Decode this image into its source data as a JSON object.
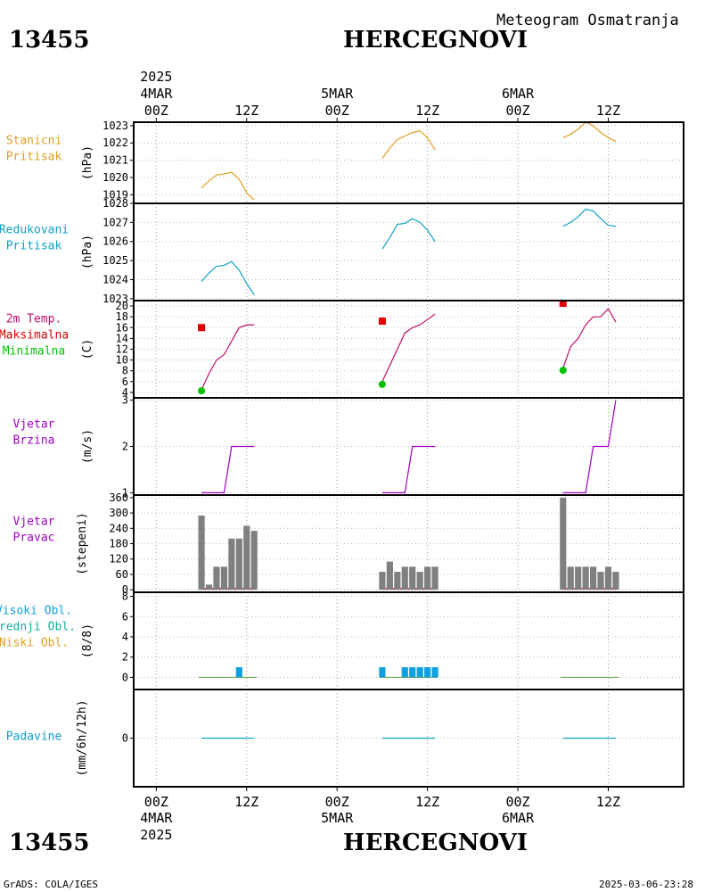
{
  "header": {
    "station_id": "13455",
    "station_name": "HERCEGNOVI",
    "subtitle": "Meteogram Osmatranja"
  },
  "footer": {
    "credit": "GrADS: COLA/IGES",
    "timestamp": "2025-03-06-23:28"
  },
  "colors": {
    "station_pressure": "#e0a020",
    "reduced_pressure": "#10a0c8",
    "temperature": "#c0106c",
    "tmax": "#e00000",
    "tmin": "#00c000",
    "wind": "#a000c0",
    "wind_dir_bar": "#808080",
    "cloud": "#10a0e0",
    "precip": "#10a0c8"
  },
  "time_axis": {
    "top_year": "2025",
    "bottom_year": "2025",
    "ticks": [
      {
        "h": 0,
        "label": "00Z",
        "date": "4MAR"
      },
      {
        "h": 12,
        "label": "12Z",
        "date": ""
      },
      {
        "h": 24,
        "label": "00Z",
        "date": "5MAR"
      },
      {
        "h": 36,
        "label": "12Z",
        "date": ""
      },
      {
        "h": 48,
        "label": "00Z",
        "date": "6MAR"
      },
      {
        "h": 60,
        "label": "12Z",
        "date": ""
      }
    ],
    "range_hours": [
      -3,
      70
    ]
  },
  "chart_data": [
    {
      "type": "line",
      "title_lines": [
        "Stanicni",
        "Pritisak"
      ],
      "ylabel": "(hPa)",
      "ylim": [
        1018.5,
        1023.2
      ],
      "yticks": [
        1019,
        1020,
        1021,
        1022,
        1023
      ],
      "series": [
        {
          "points": [
            [
              6,
              1019.4
            ],
            [
              7,
              1019.8
            ],
            [
              8,
              1020.15
            ],
            [
              9,
              1020.2
            ],
            [
              10,
              1020.3
            ],
            [
              11,
              1019.9
            ],
            [
              12,
              1019.1
            ],
            [
              13,
              1018.7
            ]
          ]
        },
        {
          "points": [
            [
              30,
              1021.1
            ],
            [
              31,
              1021.7
            ],
            [
              32,
              1022.2
            ],
            [
              33,
              1022.4
            ],
            [
              34,
              1022.6
            ],
            [
              35,
              1022.7
            ],
            [
              36,
              1022.3
            ],
            [
              37,
              1021.6
            ]
          ]
        },
        {
          "points": [
            [
              54,
              1022.3
            ],
            [
              55,
              1022.5
            ],
            [
              56,
              1022.8
            ],
            [
              57,
              1023.2
            ],
            [
              58,
              1023.0
            ],
            [
              59,
              1022.6
            ],
            [
              60,
              1022.3
            ],
            [
              61,
              1022.1
            ]
          ]
        }
      ]
    },
    {
      "type": "line",
      "title_lines": [
        "Redukovani",
        "Pritisak"
      ],
      "ylabel": "(hPa)",
      "ylim": [
        1022.9,
        1028
      ],
      "yticks": [
        1023,
        1024,
        1025,
        1026,
        1027,
        1028
      ],
      "series": [
        {
          "points": [
            [
              6,
              1023.9
            ],
            [
              7,
              1024.35
            ],
            [
              8,
              1024.7
            ],
            [
              9,
              1024.75
            ],
            [
              10,
              1024.95
            ],
            [
              11,
              1024.5
            ],
            [
              12,
              1023.8
            ],
            [
              13,
              1023.2
            ]
          ]
        },
        {
          "points": [
            [
              30,
              1025.6
            ],
            [
              31,
              1026.2
            ],
            [
              32,
              1026.9
            ],
            [
              33,
              1026.95
            ],
            [
              34,
              1027.2
            ],
            [
              35,
              1027.0
            ],
            [
              36,
              1026.6
            ],
            [
              37,
              1026.0
            ]
          ]
        },
        {
          "points": [
            [
              54,
              1026.8
            ],
            [
              55,
              1027.0
            ],
            [
              56,
              1027.3
            ],
            [
              57,
              1027.7
            ],
            [
              58,
              1027.6
            ],
            [
              59,
              1027.2
            ],
            [
              60,
              1026.85
            ],
            [
              61,
              1026.8
            ]
          ]
        }
      ]
    },
    {
      "type": "line",
      "title_lines": [
        "2m Temp.",
        "Maksimalna",
        "Minimalna"
      ],
      "ylabel": "(C)",
      "ylim": [
        3,
        21
      ],
      "yticks": [
        4,
        6,
        8,
        10,
        12,
        14,
        16,
        18,
        20
      ],
      "series": [
        {
          "points": [
            [
              6,
              4.5
            ],
            [
              7,
              7.5
            ],
            [
              8,
              10.0
            ],
            [
              9,
              11.0
            ],
            [
              10,
              13.5
            ],
            [
              11,
              16.0
            ],
            [
              12,
              16.5
            ],
            [
              13,
              16.5
            ]
          ]
        },
        {
          "points": [
            [
              30,
              6.0
            ],
            [
              31,
              9.0
            ],
            [
              32,
              12.0
            ],
            [
              33,
              15.0
            ],
            [
              34,
              16.0
            ],
            [
              35,
              16.5
            ],
            [
              36,
              17.5
            ],
            [
              37,
              18.5
            ]
          ]
        },
        {
          "points": [
            [
              54,
              8.5
            ],
            [
              55,
              12.5
            ],
            [
              56,
              14.0
            ],
            [
              57,
              16.5
            ],
            [
              58,
              18.0
            ],
            [
              59,
              18.0
            ],
            [
              60,
              19.5
            ],
            [
              61,
              17.0
            ]
          ]
        }
      ],
      "tmax": [
        [
          6,
          16.0
        ],
        [
          30,
          17.2
        ],
        [
          54,
          20.5
        ]
      ],
      "tmin": [
        [
          6,
          4.3
        ],
        [
          30,
          5.5
        ],
        [
          54,
          8.1
        ]
      ]
    },
    {
      "type": "line",
      "title_lines": [
        "Vjetar",
        "Brzina"
      ],
      "ylabel": "(m/s)",
      "ylim": [
        0.95,
        3.05
      ],
      "yticks": [
        1,
        2,
        3
      ],
      "series": [
        {
          "points": [
            [
              6,
              1
            ],
            [
              7,
              1
            ],
            [
              8,
              1
            ],
            [
              9,
              1
            ],
            [
              10,
              2
            ],
            [
              11,
              2
            ],
            [
              12,
              2
            ],
            [
              13,
              2
            ]
          ]
        },
        {
          "points": [
            [
              30,
              1
            ],
            [
              31,
              1
            ],
            [
              32,
              1
            ],
            [
              33,
              1
            ],
            [
              34,
              2
            ],
            [
              35,
              2
            ],
            [
              36,
              2
            ],
            [
              37,
              2
            ]
          ]
        },
        {
          "points": [
            [
              54,
              1
            ],
            [
              55,
              1
            ],
            [
              56,
              1
            ],
            [
              57,
              1
            ],
            [
              58,
              2
            ],
            [
              59,
              2
            ],
            [
              60,
              2
            ],
            [
              61,
              3
            ]
          ]
        }
      ]
    },
    {
      "type": "bar",
      "title_lines": [
        "Vjetar",
        "Pravac"
      ],
      "ylabel": "(stepeni)",
      "ylim": [
        -10,
        370
      ],
      "yticks": [
        0,
        60,
        120,
        180,
        240,
        300,
        360
      ],
      "bars": [
        [
          6,
          290
        ],
        [
          7,
          20
        ],
        [
          8,
          90
        ],
        [
          9,
          90
        ],
        [
          10,
          200
        ],
        [
          11,
          200
        ],
        [
          12,
          250
        ],
        [
          13,
          230
        ],
        [
          30,
          70
        ],
        [
          31,
          110
        ],
        [
          32,
          70
        ],
        [
          33,
          90
        ],
        [
          34,
          90
        ],
        [
          35,
          70
        ],
        [
          36,
          90
        ],
        [
          37,
          90
        ],
        [
          54,
          360
        ],
        [
          55,
          90
        ],
        [
          56,
          90
        ],
        [
          57,
          90
        ],
        [
          58,
          90
        ],
        [
          59,
          70
        ],
        [
          60,
          90
        ],
        [
          61,
          70
        ]
      ]
    },
    {
      "type": "bar",
      "title_lines": [
        "Visoki Obl.",
        "Srednji Obl.",
        "Niski Obl."
      ],
      "ylabel": "(8/8)",
      "ylim": [
        -1.2,
        8.4
      ],
      "yticks": [
        0,
        2,
        4,
        6,
        8
      ],
      "bars": [
        [
          11,
          1
        ],
        [
          30,
          1
        ],
        [
          33,
          1
        ],
        [
          34,
          1
        ],
        [
          35,
          1
        ],
        [
          36,
          1
        ],
        [
          37,
          1
        ]
      ]
    },
    {
      "type": "line",
      "title_lines": [
        "Padavine"
      ],
      "ylabel": "(mm/6h/12h)",
      "ylim": [
        -5,
        5
      ],
      "yticks": [
        0
      ],
      "series": [
        {
          "points": [
            [
              6,
              0
            ],
            [
              13,
              0
            ]
          ]
        },
        {
          "points": [
            [
              30,
              0
            ],
            [
              37,
              0
            ]
          ]
        },
        {
          "points": [
            [
              54,
              0
            ],
            [
              61,
              0
            ]
          ]
        }
      ]
    }
  ]
}
